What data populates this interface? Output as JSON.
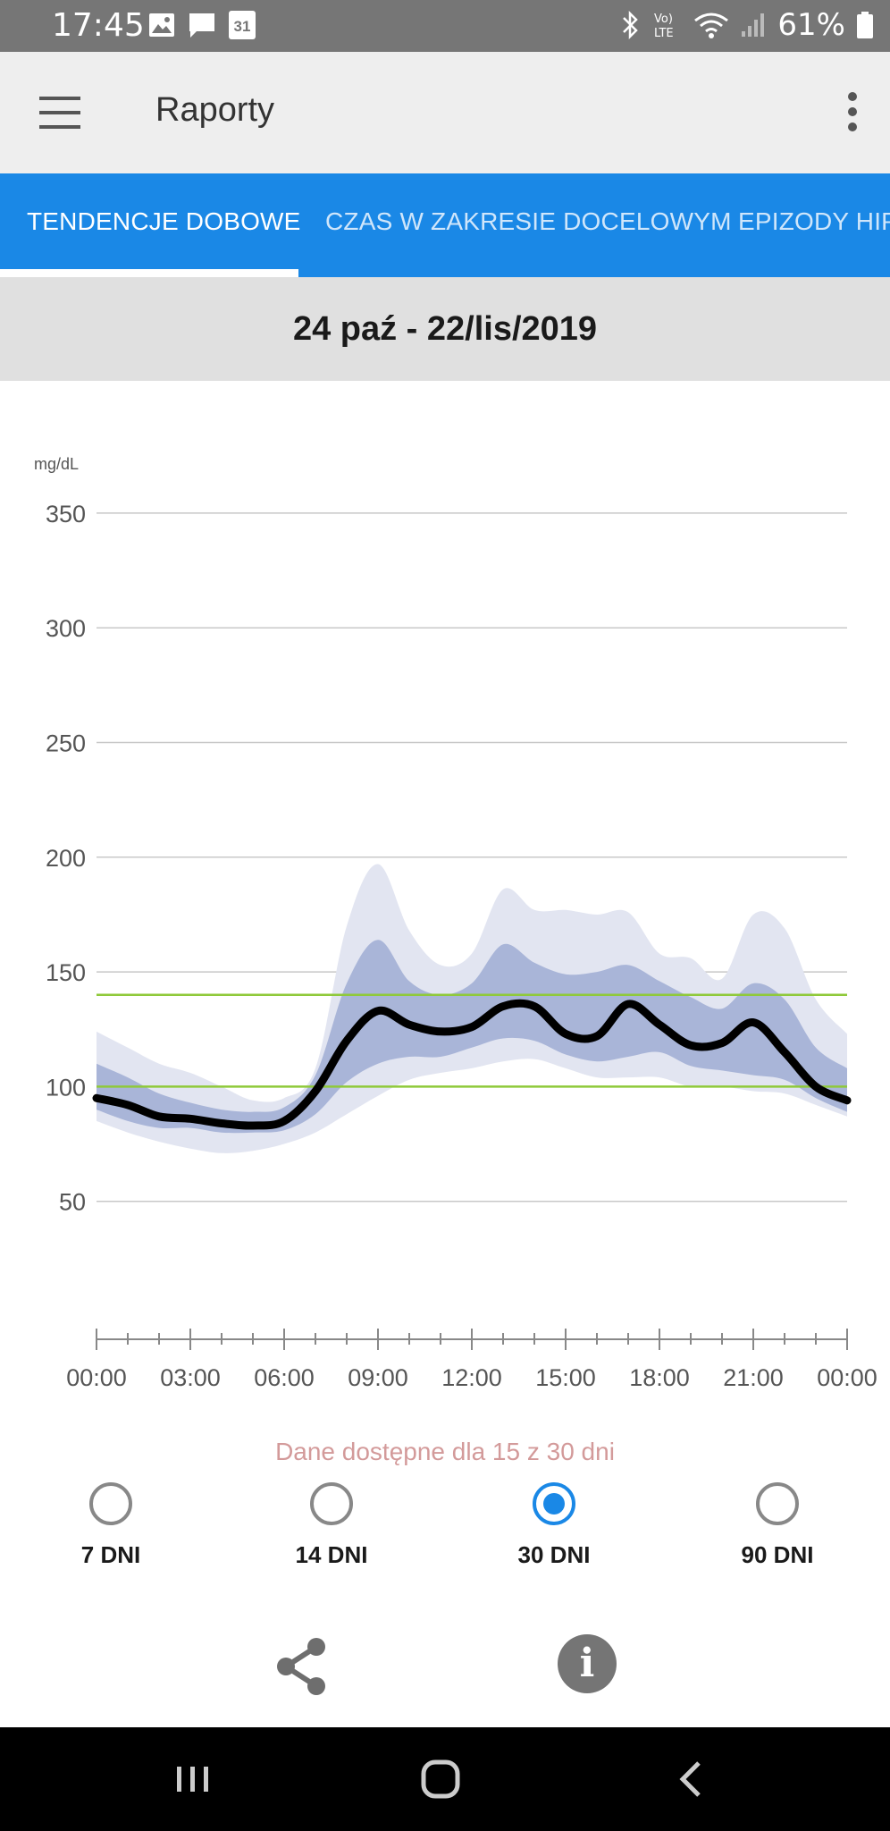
{
  "status_bar": {
    "time": "17:45",
    "calendar_day": "31",
    "battery": "61%"
  },
  "app_bar": {
    "title": "Raporty"
  },
  "tabs": [
    {
      "label": "TENDENCJE DOBOWE",
      "active": true
    },
    {
      "label": "CZAS W ZAKRESIE DOCELOWYM",
      "active": false
    },
    {
      "label": "EPIZODY HIPOGLIKEMII",
      "active": false
    }
  ],
  "date_range": "24 paź - 22/lis/2019",
  "chart_data": {
    "type": "area",
    "ylabel": "mg/dL",
    "y_ticks": [
      50,
      100,
      150,
      200,
      250,
      300,
      350
    ],
    "ylim": [
      0,
      360
    ],
    "x_ticks": [
      "00:00",
      "03:00",
      "06:00",
      "09:00",
      "12:00",
      "15:00",
      "18:00",
      "21:00",
      "00:00"
    ],
    "xlim": [
      0,
      24
    ],
    "target_range": [
      100,
      140
    ],
    "colors": {
      "outer_band": "#e2e5f1",
      "inner_band": "#a9b5d8",
      "median": "#000000",
      "target": "#8fc93a",
      "grid": "#c8c8c8"
    },
    "x": [
      0,
      1,
      2,
      3,
      4,
      5,
      6,
      7,
      8,
      9,
      10,
      11,
      12,
      13,
      14,
      15,
      16,
      17,
      18,
      19,
      20,
      21,
      22,
      23,
      24
    ],
    "series": [
      {
        "role": "p10",
        "values": [
          85,
          80,
          76,
          73,
          71,
          72,
          75,
          80,
          88,
          96,
          103,
          106,
          108,
          111,
          112,
          108,
          104,
          104,
          104,
          100,
          100,
          98,
          97,
          92,
          87
        ]
      },
      {
        "role": "p25",
        "values": [
          90,
          85,
          82,
          82,
          80,
          80,
          81,
          88,
          102,
          110,
          113,
          113,
          117,
          121,
          120,
          114,
          111,
          113,
          115,
          109,
          107,
          105,
          103,
          95,
          89
        ]
      },
      {
        "role": "median",
        "values": [
          95,
          92,
          87,
          86,
          84,
          83,
          85,
          98,
          120,
          133,
          127,
          124,
          126,
          135,
          135,
          123,
          122,
          136,
          127,
          118,
          119,
          128,
          115,
          100,
          94
        ]
      },
      {
        "role": "p75",
        "values": [
          110,
          104,
          97,
          93,
          90,
          89,
          91,
          105,
          145,
          164,
          146,
          140,
          145,
          162,
          154,
          149,
          150,
          153,
          146,
          139,
          134,
          145,
          138,
          117,
          108
        ]
      },
      {
        "role": "p90",
        "values": [
          124,
          117,
          110,
          106,
          100,
          94,
          95,
          108,
          170,
          197,
          168,
          153,
          158,
          186,
          177,
          177,
          175,
          176,
          158,
          156,
          147,
          175,
          169,
          138,
          123
        ]
      }
    ]
  },
  "data_availability": "Dane dostępne dla 15 z 30 dni",
  "period_options": [
    {
      "label": "7 DNI",
      "selected": false
    },
    {
      "label": "14 DNI",
      "selected": false
    },
    {
      "label": "30 DNI",
      "selected": true
    },
    {
      "label": "90 DNI",
      "selected": false
    }
  ],
  "icons": {
    "menu": "hamburger-menu-icon",
    "more": "more-vertical-icon",
    "share": "share-icon",
    "info": "info-icon",
    "info_glyph": "i"
  }
}
